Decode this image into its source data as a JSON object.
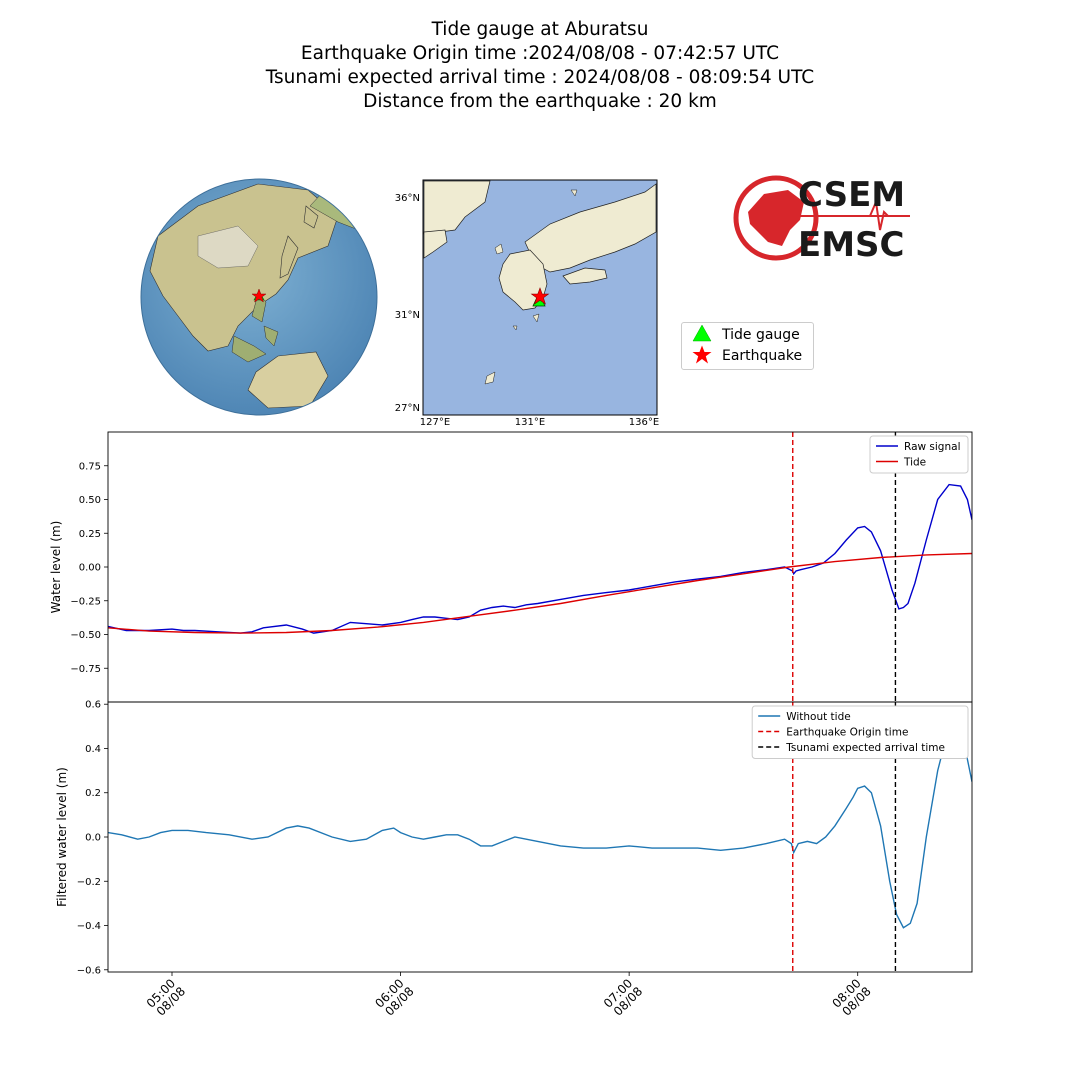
{
  "header": {
    "line1": "Tide gauge at Aburatsu",
    "line2": "Earthquake Origin time :2024/08/08 - 07:42:57 UTC",
    "line3": "Tsunami expected arrival time : 2024/08/08 - 08:09:54 UTC",
    "line4": "Distance from the earthquake : 20 km"
  },
  "map": {
    "lat_ticks": [
      "36°N",
      "31°N",
      "27°N"
    ],
    "lon_ticks": [
      "127°E",
      "131°E",
      "136°E"
    ]
  },
  "logo": {
    "line1": "CSEM",
    "line2": "EMSC",
    "color": "#d7262b"
  },
  "map_legend": {
    "items": [
      {
        "label": "Tide gauge",
        "symbol": "triangle",
        "color": "#00ff00"
      },
      {
        "label": "Earthquake",
        "symbol": "star",
        "color": "#ff0000"
      }
    ]
  },
  "chart_data": [
    {
      "type": "line",
      "ylabel": "Water level (m)",
      "ylim": [
        -1.0,
        1.0
      ],
      "yticks": [
        "0.75",
        "0.50",
        "0.25",
        "0.00",
        "−0.25",
        "−0.50",
        "−0.75"
      ],
      "ytick_values": [
        0.75,
        0.5,
        0.25,
        0.0,
        -0.25,
        -0.5,
        -0.75
      ],
      "legend_position": "upper right",
      "legend": [
        "Raw signal",
        "Tide"
      ],
      "series": [
        {
          "name": "Raw signal",
          "color": "#0000cc",
          "x": [
            4.72,
            4.8,
            4.9,
            5.0,
            5.05,
            5.1,
            5.2,
            5.3,
            5.35,
            5.4,
            5.5,
            5.57,
            5.62,
            5.7,
            5.78,
            5.85,
            5.92,
            6.0,
            6.05,
            6.1,
            6.15,
            6.2,
            6.25,
            6.3,
            6.35,
            6.4,
            6.45,
            6.5,
            6.55,
            6.6,
            6.7,
            6.8,
            6.9,
            7.0,
            7.1,
            7.2,
            7.3,
            7.4,
            7.5,
            7.6,
            7.68,
            7.715,
            7.72,
            7.73,
            7.75,
            7.8,
            7.85,
            7.9,
            7.95,
            8.0,
            8.03,
            8.06,
            8.1,
            8.15,
            8.18,
            8.2,
            8.22,
            8.25,
            8.3,
            8.35,
            8.4,
            8.45,
            8.48,
            8.5
          ],
          "y": [
            -0.44,
            -0.47,
            -0.47,
            -0.46,
            -0.47,
            -0.47,
            -0.48,
            -0.49,
            -0.48,
            -0.45,
            -0.43,
            -0.46,
            -0.49,
            -0.47,
            -0.41,
            -0.42,
            -0.43,
            -0.41,
            -0.39,
            -0.37,
            -0.37,
            -0.38,
            -0.39,
            -0.37,
            -0.32,
            -0.3,
            -0.29,
            -0.3,
            -0.28,
            -0.27,
            -0.24,
            -0.21,
            -0.19,
            -0.17,
            -0.14,
            -0.11,
            -0.09,
            -0.07,
            -0.04,
            -0.02,
            0.0,
            -0.03,
            -0.05,
            -0.03,
            -0.02,
            0.0,
            0.03,
            0.1,
            0.2,
            0.29,
            0.3,
            0.26,
            0.12,
            -0.17,
            -0.31,
            -0.3,
            -0.27,
            -0.12,
            0.2,
            0.5,
            0.61,
            0.6,
            0.5,
            0.35
          ]
        },
        {
          "name": "Tide",
          "color": "#dd0000",
          "x": [
            4.72,
            4.9,
            5.1,
            5.3,
            5.5,
            5.7,
            5.9,
            6.1,
            6.3,
            6.5,
            6.7,
            6.9,
            7.1,
            7.3,
            7.5,
            7.7,
            7.9,
            8.1,
            8.3,
            8.5
          ],
          "y": [
            -0.45,
            -0.475,
            -0.485,
            -0.49,
            -0.485,
            -0.47,
            -0.445,
            -0.41,
            -0.365,
            -0.32,
            -0.27,
            -0.21,
            -0.155,
            -0.1,
            -0.05,
            0.0,
            0.04,
            0.07,
            0.09,
            0.1
          ]
        }
      ],
      "vlines": [
        {
          "name": "Earthquake Origin time",
          "x": 7.7158,
          "color": "#dd0000"
        },
        {
          "name": "Tsunami expected arrival time",
          "x": 8.165,
          "color": "#000000"
        }
      ]
    },
    {
      "type": "line",
      "ylabel": "Filtered water level (m)",
      "ylim": [
        -0.61,
        0.61
      ],
      "yticks": [
        "0.6",
        "0.4",
        "0.2",
        "0.0",
        "−0.2",
        "−0.4",
        "−0.6"
      ],
      "ytick_values": [
        0.6,
        0.4,
        0.2,
        0.0,
        -0.2,
        -0.4,
        -0.6
      ],
      "legend_position": "upper right",
      "legend": [
        "Without tide",
        "Earthquake Origin time",
        "Tsunami expected arrival time"
      ],
      "series": [
        {
          "name": "Without tide",
          "color": "#1f77b4",
          "x": [
            4.72,
            4.78,
            4.85,
            4.9,
            4.95,
            5.0,
            5.07,
            5.15,
            5.25,
            5.35,
            5.42,
            5.5,
            5.55,
            5.6,
            5.7,
            5.78,
            5.85,
            5.92,
            5.97,
            6.0,
            6.05,
            6.1,
            6.15,
            6.2,
            6.25,
            6.3,
            6.35,
            6.4,
            6.45,
            6.5,
            6.6,
            6.7,
            6.8,
            6.9,
            7.0,
            7.1,
            7.2,
            7.3,
            7.4,
            7.5,
            7.6,
            7.68,
            7.71,
            7.72,
            7.74,
            7.78,
            7.82,
            7.86,
            7.9,
            7.95,
            7.98,
            8.0,
            8.03,
            8.06,
            8.1,
            8.14,
            8.17,
            8.2,
            8.23,
            8.26,
            8.3,
            8.35,
            8.4,
            8.43,
            8.46,
            8.5
          ],
          "y": [
            0.02,
            0.01,
            -0.01,
            0.0,
            0.02,
            0.03,
            0.03,
            0.02,
            0.01,
            -0.01,
            0.0,
            0.04,
            0.05,
            0.04,
            0.0,
            -0.02,
            -0.01,
            0.03,
            0.04,
            0.02,
            0.0,
            -0.01,
            0.0,
            0.01,
            0.01,
            -0.01,
            -0.04,
            -0.04,
            -0.02,
            0.0,
            -0.02,
            -0.04,
            -0.05,
            -0.05,
            -0.04,
            -0.05,
            -0.05,
            -0.05,
            -0.06,
            -0.05,
            -0.03,
            -0.01,
            -0.03,
            -0.07,
            -0.03,
            -0.02,
            -0.03,
            0.0,
            0.05,
            0.13,
            0.18,
            0.22,
            0.23,
            0.2,
            0.05,
            -0.2,
            -0.35,
            -0.41,
            -0.39,
            -0.3,
            0.0,
            0.3,
            0.5,
            0.51,
            0.45,
            0.25
          ]
        }
      ],
      "vlines": [
        {
          "name": "Earthquake Origin time",
          "x": 7.7158,
          "color": "#dd0000"
        },
        {
          "name": "Tsunami expected arrival time",
          "x": 8.165,
          "color": "#000000"
        }
      ],
      "xlim": [
        4.72,
        8.5
      ],
      "xticks": [
        {
          "x": 5.0,
          "label": "05:00",
          "sub": "08/08"
        },
        {
          "x": 6.0,
          "label": "06:00",
          "sub": "08/08"
        },
        {
          "x": 7.0,
          "label": "07:00",
          "sub": "08/08"
        },
        {
          "x": 8.0,
          "label": "08:00",
          "sub": "08/08"
        }
      ]
    }
  ]
}
